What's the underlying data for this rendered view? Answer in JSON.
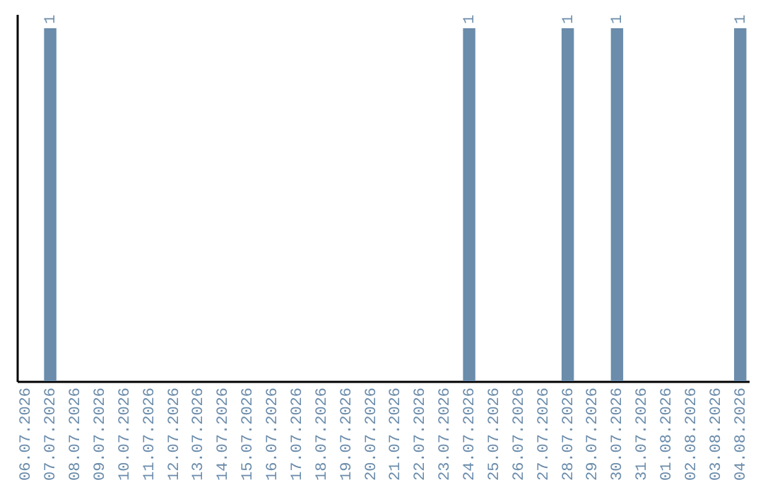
{
  "chart_data": {
    "type": "bar",
    "categories": [
      "06.07.2026",
      "07.07.2026",
      "08.07.2026",
      "09.07.2026",
      "10.07.2026",
      "11.07.2026",
      "12.07.2026",
      "13.07.2026",
      "14.07.2026",
      "15.07.2026",
      "16.07.2026",
      "17.07.2026",
      "18.07.2026",
      "19.07.2026",
      "20.07.2026",
      "21.07.2026",
      "22.07.2026",
      "23.07.2026",
      "24.07.2026",
      "25.07.2026",
      "26.07.2026",
      "27.07.2026",
      "28.07.2026",
      "29.07.2026",
      "30.07.2026",
      "31.07.2026",
      "01.08.2026",
      "02.08.2026",
      "03.08.2026",
      "04.08.2026"
    ],
    "values": [
      0,
      1,
      0,
      0,
      0,
      0,
      0,
      0,
      0,
      0,
      0,
      0,
      0,
      0,
      0,
      0,
      0,
      0,
      1,
      0,
      0,
      0,
      1,
      0,
      1,
      0,
      0,
      0,
      0,
      1
    ],
    "value_labels": [
      null,
      "1",
      null,
      null,
      null,
      null,
      null,
      null,
      null,
      null,
      null,
      null,
      null,
      null,
      null,
      null,
      null,
      null,
      "1",
      null,
      null,
      null,
      "1",
      null,
      "1",
      null,
      null,
      null,
      null,
      "1"
    ],
    "color": "#6b8cab",
    "ylim": [
      0,
      1.04
    ],
    "tick_labels": "x"
  }
}
